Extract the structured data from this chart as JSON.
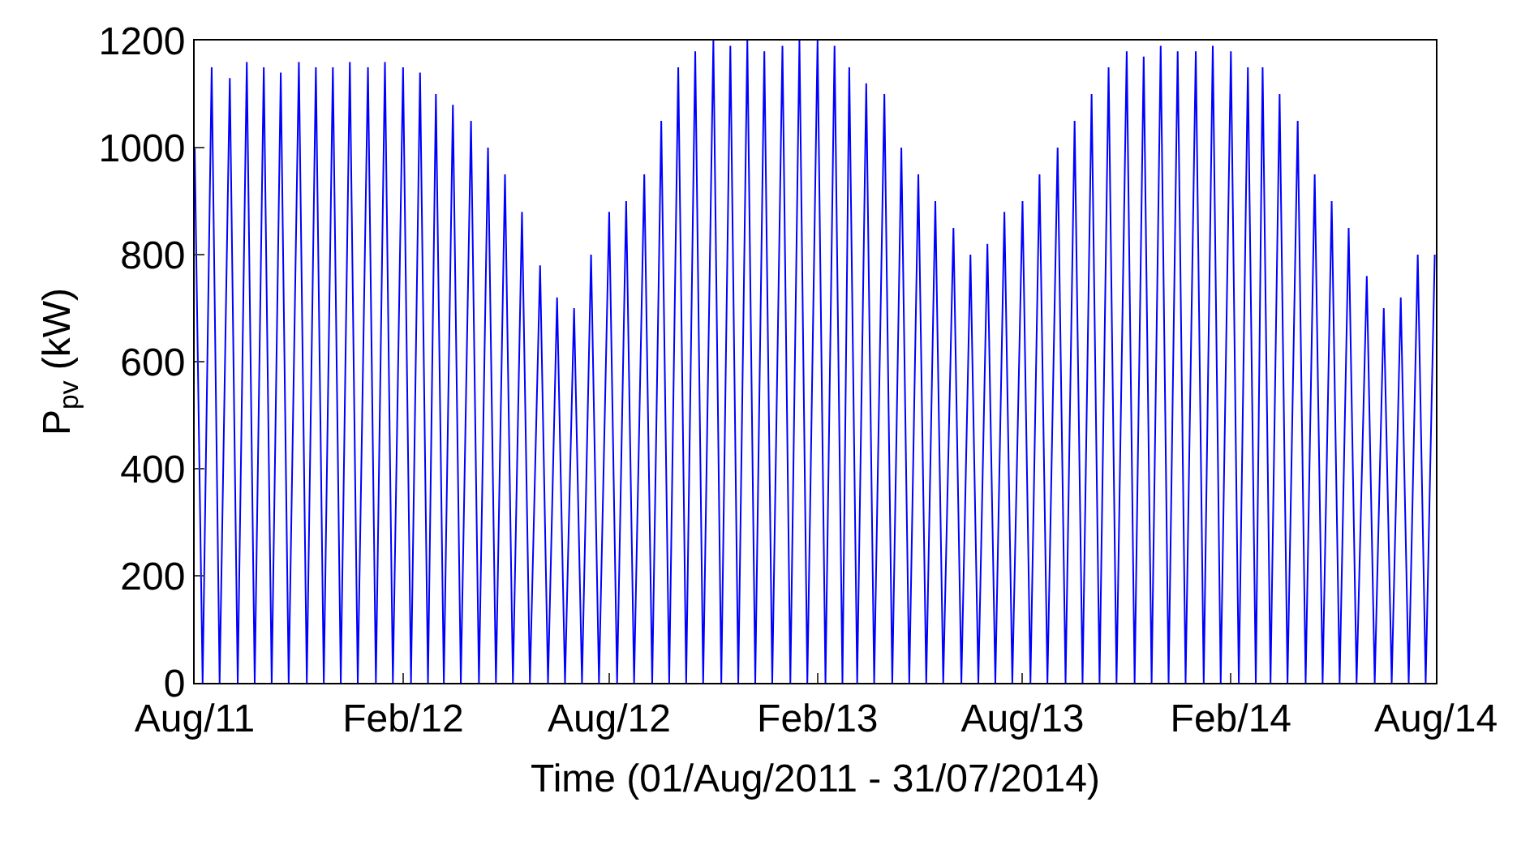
{
  "chart_data": {
    "type": "line",
    "xlabel": "Time (01/Aug/2011 - 31/07/2014)",
    "ylabel": "P$_{pv}$ (kW)",
    "xlim": [
      "2011-08-01",
      "2014-08-01"
    ],
    "xticks": [
      {
        "value": "2011-08-01",
        "label": "Aug/11"
      },
      {
        "value": "2012-02-01",
        "label": "Feb/12"
      },
      {
        "value": "2012-08-01",
        "label": "Aug/12"
      },
      {
        "value": "2013-02-01",
        "label": "Feb/13"
      },
      {
        "value": "2013-08-01",
        "label": "Aug/13"
      },
      {
        "value": "2014-02-01",
        "label": "Feb/14"
      },
      {
        "value": "2014-08-01",
        "label": "Aug/14"
      }
    ],
    "ylim": [
      0,
      1200
    ],
    "yticks": [
      0,
      200,
      400,
      600,
      800,
      1000,
      1200
    ],
    "legend": false,
    "marker": "none",
    "line_style": "solid",
    "series": [
      {
        "color": "#0000ff",
        "x": [
          "2011-08-01",
          "2011-08-08",
          "2011-08-16",
          "2011-08-23",
          "2011-09-01",
          "2011-09-08",
          "2011-09-16",
          "2011-09-23",
          "2011-10-01",
          "2011-10-08",
          "2011-10-16",
          "2011-10-23",
          "2011-11-01",
          "2011-11-08",
          "2011-11-16",
          "2011-11-23",
          "2011-12-01",
          "2011-12-08",
          "2011-12-16",
          "2011-12-23",
          "2012-01-01",
          "2012-01-08",
          "2012-01-16",
          "2012-01-23",
          "2012-02-01",
          "2012-02-08",
          "2012-02-16",
          "2012-02-23",
          "2012-03-01",
          "2012-03-08",
          "2012-03-16",
          "2012-03-23",
          "2012-04-01",
          "2012-04-08",
          "2012-04-16",
          "2012-04-23",
          "2012-05-01",
          "2012-05-08",
          "2012-05-16",
          "2012-05-23",
          "2012-06-01",
          "2012-06-08",
          "2012-06-16",
          "2012-06-23",
          "2012-07-01",
          "2012-07-08",
          "2012-07-16",
          "2012-07-23",
          "2012-08-01",
          "2012-08-08",
          "2012-08-16",
          "2012-08-23",
          "2012-09-01",
          "2012-09-08",
          "2012-09-16",
          "2012-09-23",
          "2012-10-01",
          "2012-10-08",
          "2012-10-16",
          "2012-10-23",
          "2012-11-01",
          "2012-11-08",
          "2012-11-16",
          "2012-11-23",
          "2012-12-01",
          "2012-12-08",
          "2012-12-16",
          "2012-12-23",
          "2013-01-01",
          "2013-01-08",
          "2013-01-16",
          "2013-01-23",
          "2013-02-01",
          "2013-02-08",
          "2013-02-16",
          "2013-02-23",
          "2013-03-01",
          "2013-03-08",
          "2013-03-16",
          "2013-03-23",
          "2013-04-01",
          "2013-04-08",
          "2013-04-16",
          "2013-04-23",
          "2013-05-01",
          "2013-05-08",
          "2013-05-16",
          "2013-05-23",
          "2013-06-01",
          "2013-06-08",
          "2013-06-16",
          "2013-06-23",
          "2013-07-01",
          "2013-07-08",
          "2013-07-16",
          "2013-07-23",
          "2013-08-01",
          "2013-08-08",
          "2013-08-16",
          "2013-08-23",
          "2013-09-01",
          "2013-09-08",
          "2013-09-16",
          "2013-09-23",
          "2013-10-01",
          "2013-10-08",
          "2013-10-16",
          "2013-10-23",
          "2013-11-01",
          "2013-11-08",
          "2013-11-16",
          "2013-11-23",
          "2013-12-01",
          "2013-12-08",
          "2013-12-16",
          "2013-12-23",
          "2014-01-01",
          "2014-01-08",
          "2014-01-16",
          "2014-01-23",
          "2014-02-01",
          "2014-02-08",
          "2014-02-16",
          "2014-02-23",
          "2014-03-01",
          "2014-03-08",
          "2014-03-16",
          "2014-03-23",
          "2014-04-01",
          "2014-04-08",
          "2014-04-16",
          "2014-04-23",
          "2014-05-01",
          "2014-05-08",
          "2014-05-16",
          "2014-05-23",
          "2014-06-01",
          "2014-06-08",
          "2014-06-16",
          "2014-06-23",
          "2014-07-01",
          "2014-07-08",
          "2014-07-16",
          "2014-07-23",
          "2014-07-31"
        ],
        "values": [
          1000,
          0,
          1150,
          0,
          1130,
          0,
          1160,
          0,
          1150,
          0,
          1140,
          0,
          1160,
          0,
          1150,
          0,
          1150,
          0,
          1160,
          0,
          1150,
          0,
          1160,
          0,
          1150,
          0,
          1140,
          0,
          1100,
          0,
          1080,
          0,
          1050,
          0,
          1000,
          0,
          950,
          0,
          880,
          0,
          780,
          0,
          720,
          0,
          700,
          0,
          800,
          0,
          880,
          0,
          900,
          0,
          950,
          0,
          1050,
          0,
          1150,
          0,
          1180,
          0,
          1200,
          0,
          1190,
          0,
          1200,
          0,
          1180,
          0,
          1190,
          0,
          1200,
          0,
          1200,
          0,
          1190,
          0,
          1150,
          0,
          1120,
          0,
          1100,
          0,
          1000,
          0,
          950,
          0,
          900,
          0,
          850,
          0,
          800,
          0,
          820,
          0,
          880,
          0,
          900,
          0,
          950,
          0,
          1000,
          0,
          1050,
          0,
          1100,
          0,
          1150,
          0,
          1180,
          0,
          1170,
          0,
          1190,
          0,
          1180,
          0,
          1180,
          0,
          1190,
          0,
          1180,
          0,
          1150,
          0,
          1150,
          0,
          1100,
          0,
          1050,
          0,
          950,
          0,
          900,
          0,
          850,
          0,
          760,
          0,
          700,
          0,
          720,
          0,
          800,
          0,
          800
        ]
      }
    ]
  }
}
